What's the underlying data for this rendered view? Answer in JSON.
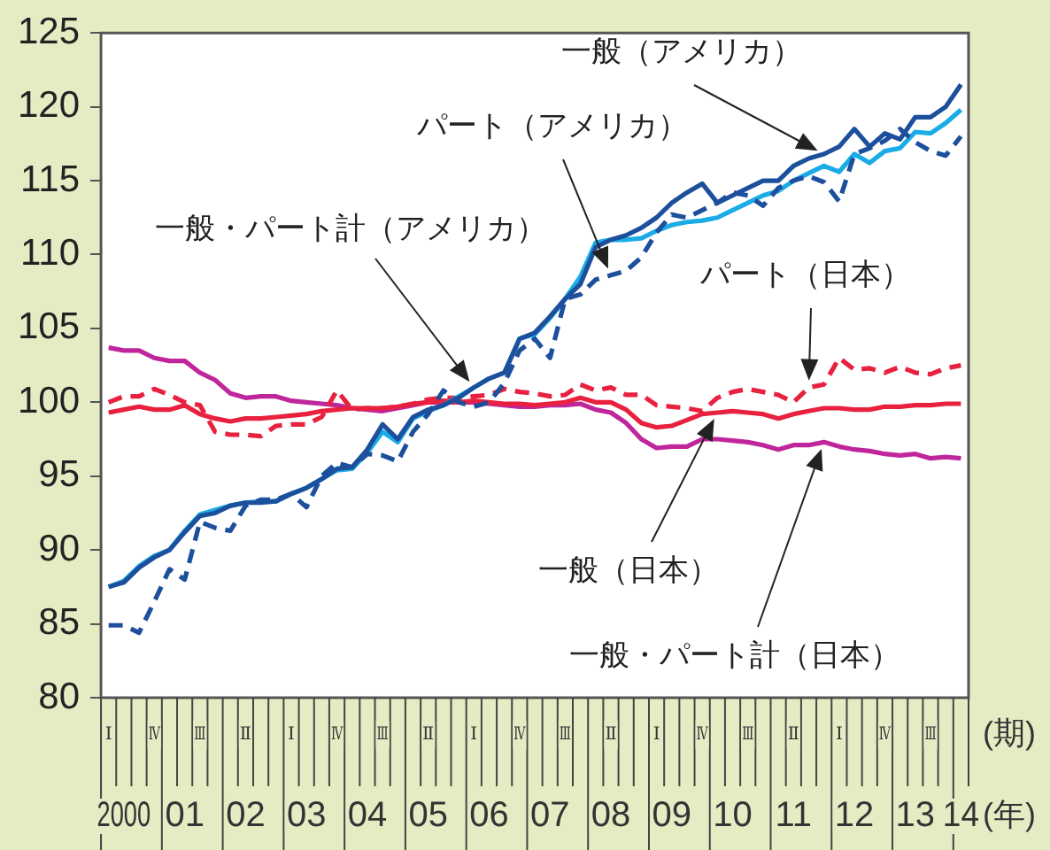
{
  "chart_data": {
    "type": "line",
    "xlabel": "(年)",
    "x2label": "(期)",
    "categories": [
      null,
      "2000",
      null,
      null,
      null,
      "01",
      null,
      null,
      null,
      "02",
      null,
      null,
      null,
      "03",
      null,
      null,
      null,
      "04",
      null,
      null,
      null,
      "05",
      null,
      null,
      null,
      "06",
      null,
      null,
      null,
      "07",
      null,
      null,
      null,
      "08",
      null,
      null,
      null,
      "09",
      null,
      null,
      null,
      "10",
      null,
      null,
      null,
      "11",
      null,
      null,
      null,
      "12",
      null,
      null,
      null,
      "13",
      null,
      null,
      "14"
    ],
    "annotations": [
      "Ⅰ",
      "Ⅳ",
      "Ⅲ",
      "Ⅱ",
      "Ⅰ",
      "Ⅳ",
      "Ⅲ",
      "Ⅱ",
      "Ⅰ",
      "Ⅳ",
      "Ⅲ",
      "Ⅱ",
      "Ⅰ",
      "Ⅳ",
      "Ⅲ",
      "Ⅱ",
      "Ⅰ",
      "Ⅳ",
      "Ⅲ"
    ],
    "series": [
      {
        "name": "一般（アメリカ）",
        "color": "#1c4f9c",
        "line_style": "solid",
        "values": [
          87.5,
          87.8,
          88.8,
          89.5,
          90.0,
          91.2,
          92.3,
          92.5,
          93.0,
          93.2,
          93.2,
          93.3,
          93.8,
          94.2,
          94.8,
          95.5,
          95.6,
          96.8,
          98.5,
          97.5,
          99.0,
          99.5,
          99.8,
          100.3,
          101.0,
          101.6,
          102.0,
          104.3,
          104.7,
          105.8,
          107.0,
          108.0,
          110.5,
          111.0,
          111.3,
          111.8,
          112.5,
          113.5,
          114.2,
          114.8,
          113.5,
          114.0,
          114.5,
          115.0,
          115.0,
          116.0,
          116.5,
          116.8,
          117.3,
          118.5,
          117.3,
          118.2,
          117.8,
          119.3,
          119.3,
          120.0,
          121.5
        ]
      },
      {
        "name": "パート（アメリカ）",
        "color": "#1c4f9c",
        "line_style": "dashed",
        "values": [
          84.9,
          84.9,
          84.4,
          86.5,
          88.7,
          88.0,
          91.9,
          91.5,
          91.3,
          93.0,
          93.4,
          93.4,
          93.8,
          92.9,
          95.0,
          95.9,
          95.6,
          96.5,
          96.4,
          96.0,
          98.0,
          99.2,
          100.8,
          100.0,
          99.7,
          100.0,
          101.3,
          103.5,
          104.3,
          103.0,
          107.0,
          107.3,
          108.3,
          108.6,
          108.9,
          109.8,
          111.5,
          112.7,
          112.5,
          113.0,
          113.5,
          114.2,
          114.0,
          113.3,
          114.5,
          115.0,
          115.3,
          114.9,
          113.6,
          116.8,
          117.2,
          117.7,
          118.5,
          117.6,
          117.0,
          116.7,
          118.0
        ]
      },
      {
        "name": "一般・パート計（アメリカ）",
        "color": "#1aace6",
        "line_style": "solid",
        "values": [
          87.5,
          87.9,
          88.9,
          89.6,
          90.0,
          91.3,
          92.4,
          92.7,
          93.0,
          93.2,
          93.3,
          93.3,
          93.8,
          94.2,
          94.8,
          95.4,
          95.5,
          96.6,
          98.0,
          97.3,
          98.9,
          99.4,
          99.8,
          100.4,
          101.0,
          101.6,
          102.0,
          104.3,
          104.6,
          105.7,
          107.0,
          108.5,
          110.8,
          111.0,
          111.0,
          111.1,
          111.6,
          112.0,
          112.2,
          112.3,
          112.5,
          113.0,
          113.5,
          114.0,
          114.3,
          115.0,
          115.5,
          116.0,
          115.6,
          116.8,
          116.2,
          117.0,
          117.2,
          118.3,
          118.2,
          118.9,
          119.8
        ]
      },
      {
        "name": "パート（日本）",
        "color": "#e8213f",
        "line_style": "dashed",
        "values": [
          100.0,
          100.4,
          100.4,
          100.9,
          100.5,
          100.0,
          99.8,
          98.0,
          97.8,
          97.8,
          97.7,
          98.4,
          98.5,
          98.5,
          99.0,
          100.8,
          99.5,
          99.6,
          99.6,
          99.7,
          99.9,
          100.2,
          100.3,
          100.3,
          100.4,
          100.5,
          100.9,
          100.7,
          100.6,
          100.4,
          100.5,
          101.2,
          100.8,
          101.0,
          100.5,
          100.5,
          99.8,
          99.7,
          99.6,
          99.4,
          100.3,
          100.7,
          100.9,
          100.7,
          100.5,
          100.0,
          101.0,
          101.2,
          103.0,
          102.2,
          102.3,
          102.0,
          102.4,
          102.0,
          101.9,
          102.3,
          102.5
        ]
      },
      {
        "name": "一般（日本）",
        "color": "#e8213f",
        "line_style": "solid",
        "values": [
          99.3,
          99.5,
          99.7,
          99.5,
          99.5,
          99.8,
          99.2,
          98.9,
          98.7,
          98.9,
          98.9,
          99.0,
          99.1,
          99.2,
          99.4,
          99.5,
          99.6,
          99.6,
          99.6,
          99.7,
          99.9,
          100.0,
          100.1,
          100.0,
          100.1,
          100.0,
          99.9,
          99.9,
          99.8,
          99.9,
          100.0,
          100.3,
          100.0,
          100.0,
          99.5,
          98.6,
          98.3,
          98.4,
          98.8,
          99.2,
          99.3,
          99.4,
          99.3,
          99.2,
          98.9,
          99.2,
          99.4,
          99.6,
          99.6,
          99.5,
          99.5,
          99.7,
          99.7,
          99.8,
          99.8,
          99.9,
          99.9
        ]
      },
      {
        "name": "一般・パート計（日本）",
        "color": "#c0269c",
        "line_style": "solid",
        "values": [
          103.7,
          103.5,
          103.5,
          103.0,
          102.8,
          102.8,
          102.0,
          101.5,
          100.6,
          100.3,
          100.4,
          100.4,
          100.1,
          100.0,
          99.9,
          99.8,
          99.6,
          99.5,
          99.4,
          99.6,
          99.8,
          100.0,
          100.0,
          100.0,
          100.0,
          99.9,
          99.8,
          99.7,
          99.7,
          99.8,
          99.8,
          99.9,
          99.5,
          99.3,
          98.6,
          97.5,
          96.9,
          97.0,
          97.0,
          97.5,
          97.5,
          97.4,
          97.3,
          97.1,
          96.8,
          97.1,
          97.1,
          97.3,
          97.0,
          96.8,
          96.7,
          96.5,
          96.4,
          96.5,
          96.2,
          96.3,
          96.2
        ]
      }
    ],
    "ylim": [
      80,
      125
    ],
    "yticks": [
      80,
      85,
      90,
      95,
      100,
      105,
      110,
      115,
      120,
      125
    ],
    "grid": false,
    "legend": false,
    "marker": "none"
  }
}
